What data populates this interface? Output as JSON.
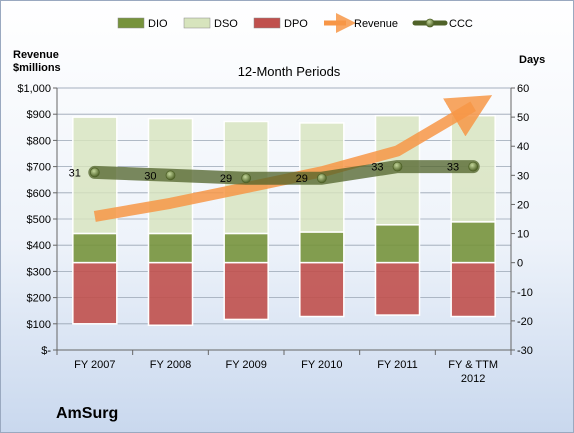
{
  "chart_data": {
    "type": "bar",
    "stacked": true,
    "title": "12-Month Periods",
    "company": "AmSurg",
    "y_left_label_line1": "Revenue",
    "y_left_label_line2": "$millions",
    "y_right_label": "Days",
    "categories": [
      "FY 2007",
      "FY 2008",
      "FY 2009",
      "FY 2010",
      "FY 2011",
      "FY & TTM 2012"
    ],
    "y_left_ticks": [
      "$-",
      "$100",
      "$200",
      "$300",
      "$400",
      "$500",
      "$600",
      "$700",
      "$800",
      "$900",
      "$1,000"
    ],
    "y_left_range": [
      0,
      1000
    ],
    "y_right_range": [
      -30,
      60
    ],
    "y_right_ticks": [
      "-30",
      "-20",
      "-10",
      "0",
      "10",
      "20",
      "30",
      "40",
      "50",
      "60"
    ],
    "series": [
      {
        "name": "DIO",
        "axis": "right",
        "color": "#77933c",
        "values": [
          10,
          10,
          10,
          10.5,
          13,
          14
        ]
      },
      {
        "name": "DSO",
        "axis": "right",
        "color": "#d7e4bd",
        "values": [
          40,
          39.5,
          38.5,
          37.5,
          37.5,
          36.5
        ]
      },
      {
        "name": "DPO",
        "axis": "right",
        "color": "#c0504d",
        "values": [
          -21,
          -21.5,
          -19.5,
          -18.5,
          -18,
          -18.5
        ]
      },
      {
        "name": "Revenue",
        "axis": "left",
        "color": "#f79646",
        "values": [
          510,
          560,
          620,
          680,
          760,
          930
        ]
      },
      {
        "name": "CCC",
        "axis": "right",
        "color": "#4f6228",
        "values": [
          31,
          30,
          29,
          29,
          33,
          33
        ],
        "labels": [
          "31",
          "30",
          "29",
          "29",
          "33",
          "33"
        ]
      }
    ],
    "legend": "top"
  }
}
